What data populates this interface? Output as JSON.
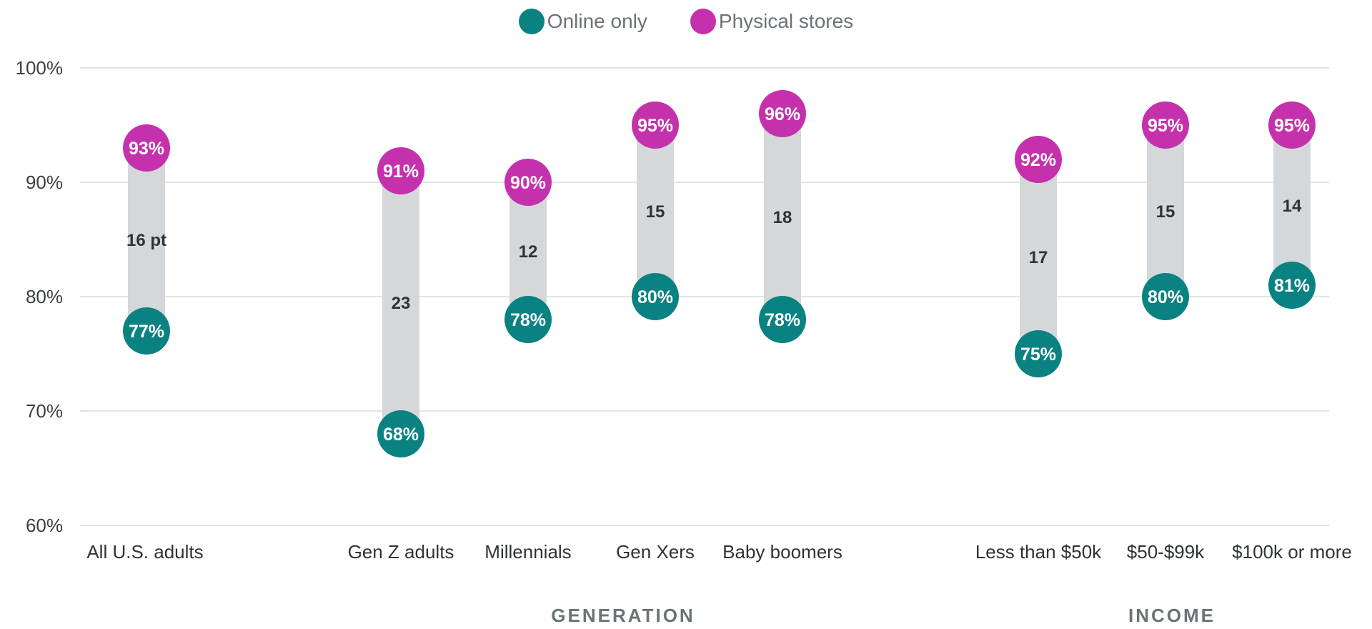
{
  "chart_data": {
    "type": "dumbbell",
    "ylim": [
      60,
      100
    ],
    "y_ticks": [
      "60%",
      "70%",
      "80%",
      "90%",
      "100%"
    ],
    "grid": true,
    "legend": {
      "position": "top-center"
    },
    "series": [
      {
        "name": "Online only",
        "color": "#0a8282"
      },
      {
        "name": "Physical stores",
        "color": "#c531ac"
      }
    ],
    "groups": [
      {
        "label": "",
        "categories": [
          "All U.S. adults"
        ]
      },
      {
        "label": "GENERATION",
        "categories": [
          "Gen Z adults",
          "Millennials",
          "Gen Xers",
          "Baby boomers"
        ]
      },
      {
        "label": "INCOME",
        "categories": [
          "Less than $50k",
          "$50-$99k",
          "$100k or more"
        ]
      }
    ],
    "points": [
      {
        "category": "All U.S. adults",
        "online": 77,
        "physical": 93,
        "gap_label": "16 pt"
      },
      {
        "category": "Gen Z adults",
        "online": 68,
        "physical": 91,
        "gap_label": "23"
      },
      {
        "category": "Millennials",
        "online": 78,
        "physical": 90,
        "gap_label": "12"
      },
      {
        "category": "Gen Xers",
        "online": 80,
        "physical": 95,
        "gap_label": "15"
      },
      {
        "category": "Baby boomers",
        "online": 78,
        "physical": 96,
        "gap_label": "18"
      },
      {
        "category": "Less than $50k",
        "online": 75,
        "physical": 92,
        "gap_label": "17"
      },
      {
        "category": "$50-$99k",
        "online": 80,
        "physical": 95,
        "gap_label": "15"
      },
      {
        "category": "$100k or more",
        "online": 81,
        "physical": 95,
        "gap_label": "14"
      }
    ]
  },
  "legend_items": [
    {
      "label": "Online only",
      "color": "#0a8282"
    },
    {
      "label": "Physical stores",
      "color": "#c531ac"
    }
  ]
}
